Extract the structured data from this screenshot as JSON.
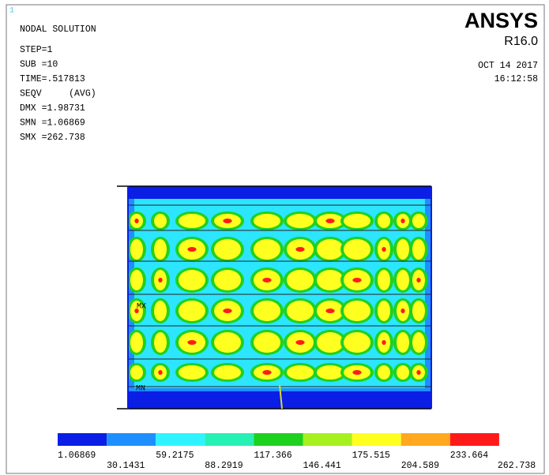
{
  "viewport_number": "1",
  "info": {
    "title": "NODAL SOLUTION",
    "lines": [
      "STEP=1",
      "SUB =10",
      "TIME=.517813",
      "SEQV     (AVG)",
      "DMX =1.98731",
      "SMN =1.06869",
      "SMX =262.738"
    ]
  },
  "brand": {
    "name": "ANSYS",
    "release": "R16.0",
    "date": "OCT 14 2017",
    "time": "16:12:58"
  },
  "model": {
    "max_label": "MX",
    "min_label": "MN"
  },
  "legend": {
    "colors": [
      "#0a1ee6",
      "#1f8fff",
      "#2ff4ff",
      "#26f0b4",
      "#1fd11f",
      "#a6f020",
      "#ffff20",
      "#ffa820",
      "#ff1a1a"
    ],
    "labels": [
      "1.06869",
      "30.1431",
      "59.2175",
      "88.2919",
      "117.366",
      "146.441",
      "175.515",
      "204.589",
      "233.664",
      "262.738"
    ]
  }
}
